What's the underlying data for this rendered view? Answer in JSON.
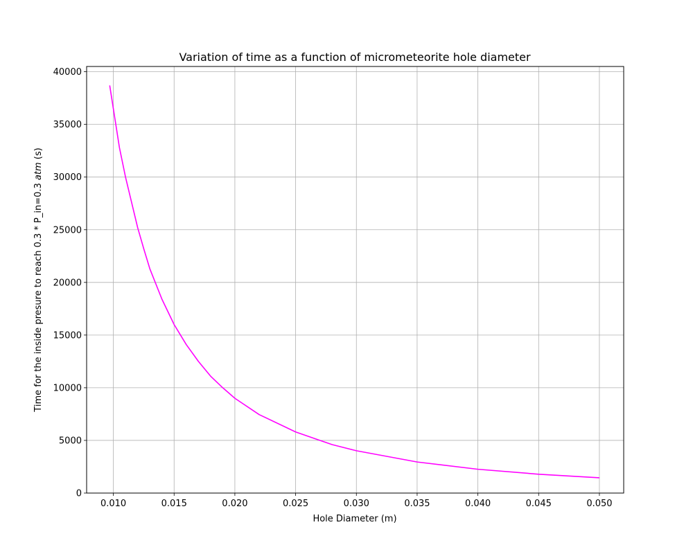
{
  "chart_data": {
    "type": "line",
    "title": "Variation of time as a function of micrometeorite hole diameter",
    "xlabel": "Hole Diameter (m)",
    "ylabel_prefix": "Time for the inside presure to reach 0.3 * P_in=0.3 ",
    "ylabel_italic": "atm",
    "ylabel_suffix": " (s)",
    "xlim": [
      0.0078,
      0.052
    ],
    "ylim": [
      0,
      40500
    ],
    "xticks": [
      "0.010",
      "0.015",
      "0.020",
      "0.025",
      "0.030",
      "0.035",
      "0.040",
      "0.045",
      "0.050"
    ],
    "yticks": [
      "0",
      "5000",
      "10000",
      "15000",
      "20000",
      "25000",
      "30000",
      "35000",
      "40000"
    ],
    "grid": true,
    "series": [
      {
        "color": "#ff00ff",
        "x": [
          0.0097,
          0.0105,
          0.011,
          0.012,
          0.0125,
          0.013,
          0.014,
          0.015,
          0.016,
          0.017,
          0.018,
          0.019,
          0.02,
          0.022,
          0.025,
          0.028,
          0.03,
          0.035,
          0.04,
          0.045,
          0.05
        ],
        "y": [
          38700,
          32800,
          30000,
          25200,
          23200,
          21300,
          18400,
          16000,
          14100,
          12500,
          11100,
          10000,
          9000,
          7450,
          5800,
          4600,
          4020,
          2950,
          2260,
          1790,
          1450
        ]
      }
    ]
  }
}
